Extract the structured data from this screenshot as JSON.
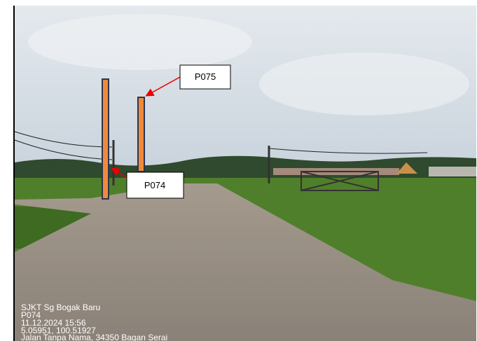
{
  "callouts": [
    {
      "label": "P075"
    },
    {
      "label": "P074"
    }
  ],
  "stamp": {
    "lines": [
      "SJKT Sg Bogak Baru",
      "P074",
      "11.12.2024 15:56",
      "5.05951, 100.51927",
      "Jalan Tanpa Nama, 34350 Bagan Serai"
    ]
  }
}
